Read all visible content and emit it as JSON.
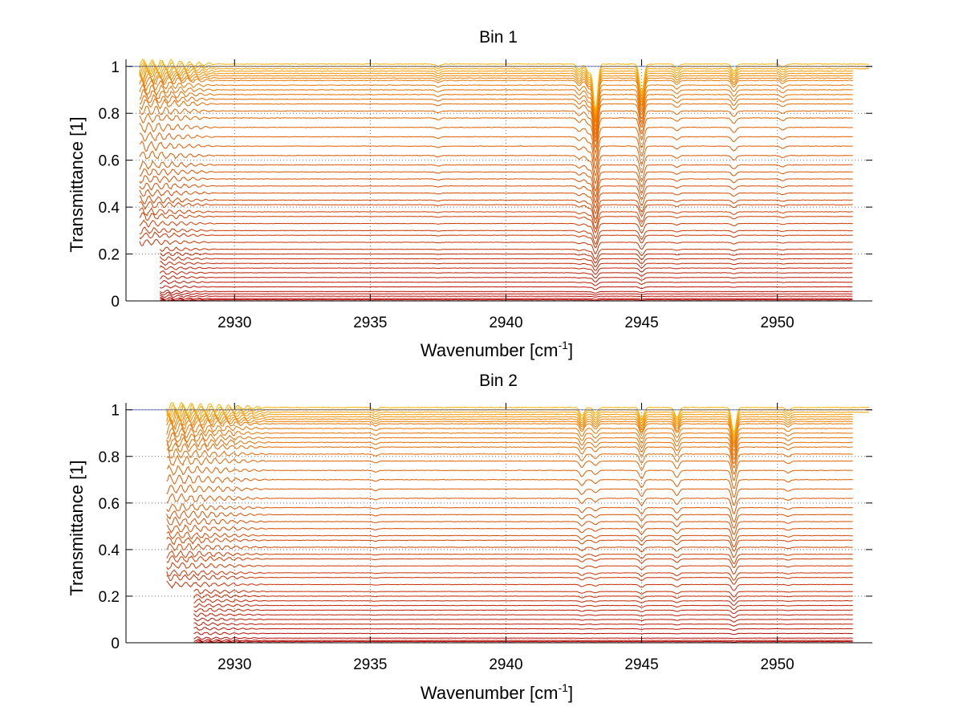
{
  "chart_data": [
    {
      "type": "line",
      "title": "Bin 1",
      "xlabel": "Wavenumber [cm",
      "xlabel_sup": "-1",
      "xlabel_end": "]",
      "ylabel": "Transmittance [1]",
      "xlim": [
        2926,
        2953.5
      ],
      "ylim": [
        0,
        1.03
      ],
      "xticks": [
        2930,
        2935,
        2940,
        2945,
        2950
      ],
      "xtick_labels": [
        "2930",
        "2935",
        "2940",
        "2945",
        "2950"
      ],
      "yticks": [
        0,
        0.2,
        0.4,
        0.6,
        0.8,
        1
      ],
      "ytick_labels": [
        "0",
        "0.2",
        "0.4",
        "0.6",
        "0.8",
        "1"
      ],
      "grid": true,
      "series_baselines": [
        0.0,
        0.005,
        0.01,
        0.02,
        0.03,
        0.04,
        0.06,
        0.08,
        0.1,
        0.12,
        0.14,
        0.16,
        0.18,
        0.2,
        0.22,
        0.25,
        0.28,
        0.3,
        0.33,
        0.36,
        0.38,
        0.41,
        0.43,
        0.46,
        0.49,
        0.52,
        0.55,
        0.58,
        0.62,
        0.66,
        0.7,
        0.74,
        0.78,
        0.81,
        0.84,
        0.86,
        0.88,
        0.9,
        0.92,
        0.94,
        0.95,
        0.96,
        0.97,
        0.98,
        0.99,
        1.0,
        1.01
      ],
      "absorption_lines": [
        {
          "x": 2943.3,
          "depth": 0.16
        },
        {
          "x": 2945.0,
          "depth": 0.1
        },
        {
          "x": 2943.05,
          "depth": 0.03
        },
        {
          "x": 2948.4,
          "depth": 0.025
        },
        {
          "x": 2942.7,
          "depth": 0.02
        },
        {
          "x": 2946.3,
          "depth": 0.015
        },
        {
          "x": 2950.2,
          "depth": 0.012
        },
        {
          "x": 2937.5,
          "depth": 0.008
        }
      ],
      "ripple_region": [
        2926.5,
        2929.5
      ]
    },
    {
      "type": "line",
      "title": "Bin 2",
      "xlabel": "Wavenumber [cm",
      "xlabel_sup": "-1",
      "xlabel_end": "]",
      "ylabel": "Transmittance [1]",
      "xlim": [
        2926,
        2953.5
      ],
      "ylim": [
        0,
        1.03
      ],
      "xticks": [
        2930,
        2935,
        2940,
        2945,
        2950
      ],
      "xtick_labels": [
        "2930",
        "2935",
        "2940",
        "2945",
        "2950"
      ],
      "yticks": [
        0,
        0.2,
        0.4,
        0.6,
        0.8,
        1
      ],
      "ytick_labels": [
        "0",
        "0.2",
        "0.4",
        "0.6",
        "0.8",
        "1"
      ],
      "grid": true,
      "series_baselines": [
        0.0,
        0.005,
        0.01,
        0.02,
        0.04,
        0.06,
        0.08,
        0.1,
        0.12,
        0.14,
        0.16,
        0.18,
        0.2,
        0.22,
        0.25,
        0.28,
        0.3,
        0.33,
        0.36,
        0.38,
        0.41,
        0.44,
        0.46,
        0.49,
        0.52,
        0.55,
        0.58,
        0.62,
        0.66,
        0.7,
        0.74,
        0.78,
        0.81,
        0.84,
        0.86,
        0.88,
        0.9,
        0.92,
        0.94,
        0.95,
        0.96,
        0.97,
        0.98,
        0.99,
        1.0,
        1.01
      ],
      "absorption_lines": [
        {
          "x": 2948.4,
          "depth": 0.09
        },
        {
          "x": 2945.0,
          "depth": 0.04
        },
        {
          "x": 2946.3,
          "depth": 0.035
        },
        {
          "x": 2942.8,
          "depth": 0.03
        },
        {
          "x": 2943.3,
          "depth": 0.02
        },
        {
          "x": 2950.4,
          "depth": 0.012
        },
        {
          "x": 2935.2,
          "depth": 0.008
        }
      ],
      "ripple_region": [
        2927.5,
        2931.5
      ]
    }
  ]
}
